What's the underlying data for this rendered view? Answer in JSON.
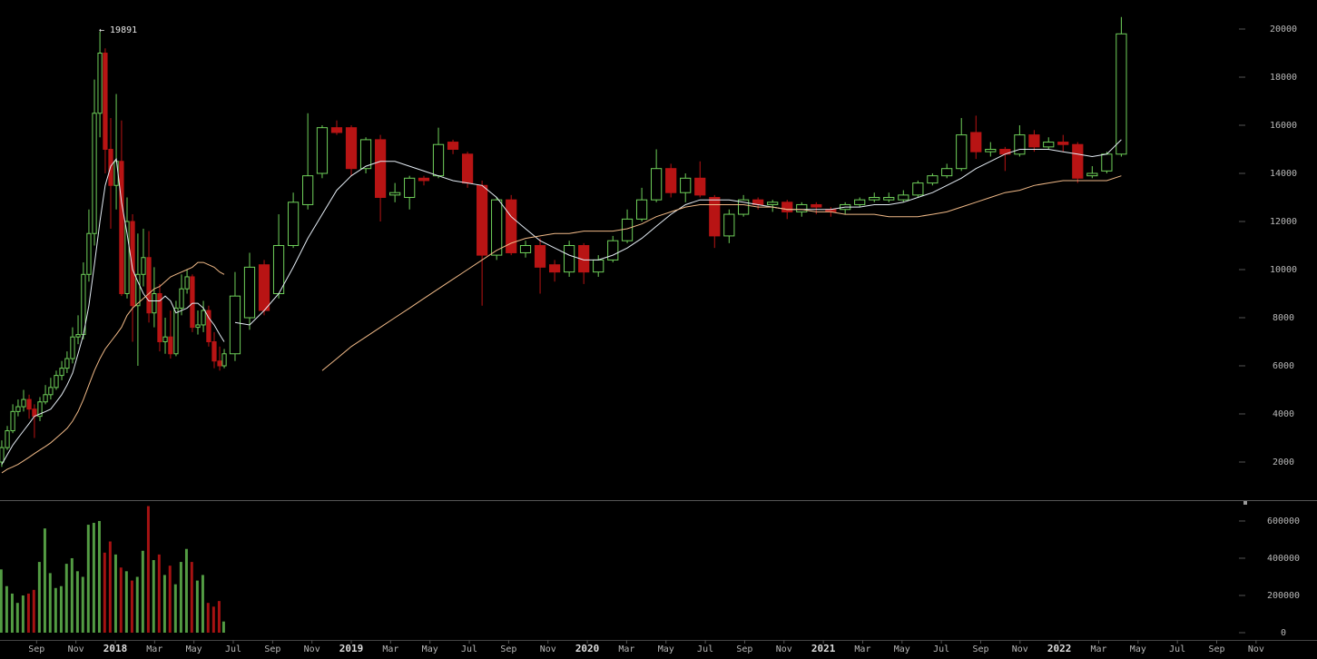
{
  "chart_data": {
    "type": "candlestick",
    "annotation": "← 19891",
    "xlim": [
      -5.86,
      57.13
    ],
    "xticks": [
      {
        "value": -4,
        "label": "Sep"
      },
      {
        "value": -2,
        "label": "Nov"
      },
      {
        "value": 0,
        "label": "2018"
      },
      {
        "value": 2,
        "label": "Mar"
      },
      {
        "value": 4,
        "label": "May"
      },
      {
        "value": 6,
        "label": "Jul"
      },
      {
        "value": 8,
        "label": "Sep"
      },
      {
        "value": 10,
        "label": "Nov"
      },
      {
        "value": 12,
        "label": "2019"
      },
      {
        "value": 14,
        "label": "Mar"
      },
      {
        "value": 16,
        "label": "May"
      },
      {
        "value": 18,
        "label": "Jul"
      },
      {
        "value": 20,
        "label": "Sep"
      },
      {
        "value": 22,
        "label": "Nov"
      },
      {
        "value": 24,
        "label": "2020"
      },
      {
        "value": 26,
        "label": "Mar"
      },
      {
        "value": 28,
        "label": "May"
      },
      {
        "value": 30,
        "label": "Jul"
      },
      {
        "value": 32,
        "label": "Sep"
      },
      {
        "value": 34,
        "label": "Nov"
      },
      {
        "value": 36,
        "label": "2021"
      },
      {
        "value": 38,
        "label": "Mar"
      },
      {
        "value": 40,
        "label": "May"
      },
      {
        "value": 42,
        "label": "Jul"
      },
      {
        "value": 44,
        "label": "Sep"
      },
      {
        "value": 46,
        "label": "Nov"
      },
      {
        "value": 48,
        "label": "2022"
      },
      {
        "value": 50,
        "label": "Mar"
      },
      {
        "value": 52,
        "label": "May"
      },
      {
        "value": 54,
        "label": "Jul"
      },
      {
        "value": 56,
        "label": "Sep"
      },
      {
        "value": 58,
        "label": "Nov"
      }
    ],
    "ylim": [
      415,
      21208
    ],
    "yticks": [
      2000,
      4000,
      6000,
      8000,
      10000,
      12000,
      14000,
      16000,
      18000,
      20000
    ],
    "volume_ylim": [
      -39000,
      712000
    ],
    "volume_yticks": [
      0,
      200000,
      400000,
      600000
    ],
    "up_color": "#6fd05a",
    "down_color": "#b81414",
    "groups": [
      {
        "x": [
          -5.77,
          -5.49,
          -5.21,
          -4.94,
          -4.66,
          -4.38,
          -4.11,
          -3.83,
          -3.55,
          -3.28,
          -3.0,
          -2.72,
          -2.45,
          -2.17,
          -1.89,
          -1.62,
          -1.34,
          -1.06,
          -0.78,
          -0.51,
          -0.23,
          0.05,
          0.32,
          0.6,
          0.88,
          1.15,
          1.43,
          1.71,
          1.98,
          2.26,
          2.54,
          2.81,
          3.09,
          3.37,
          3.65,
          3.92,
          4.2,
          4.48,
          4.75,
          5.03,
          5.31,
          5.54
        ],
        "open": [
          2000,
          2600,
          3300,
          4100,
          4300,
          4600,
          4200,
          3900,
          4500,
          4800,
          5100,
          5600,
          5900,
          6300,
          7200,
          7300,
          9800,
          11500,
          16500,
          19000,
          15000,
          13500,
          14500,
          9000,
          12000,
          8500,
          9800,
          10500,
          8200,
          9000,
          7000,
          7200,
          6500,
          8400,
          9200,
          9700,
          7600,
          7700,
          8300,
          7000,
          6200,
          6000
        ],
        "high": [
          2900,
          3500,
          4400,
          4600,
          5000,
          4800,
          4400,
          4700,
          5200,
          5500,
          5800,
          6200,
          6600,
          7600,
          8100,
          10300,
          12500,
          17900,
          19891,
          19200,
          16300,
          17300,
          16200,
          13000,
          12300,
          11500,
          11700,
          11600,
          10100,
          9400,
          8000,
          8300,
          8700,
          9800,
          10000,
          9800,
          8300,
          8700,
          8500,
          7400,
          6800,
          6700
        ],
        "low": [
          1800,
          2500,
          3200,
          3900,
          4100,
          3800,
          3000,
          3700,
          4400,
          4600,
          5000,
          5400,
          5700,
          6100,
          6900,
          7100,
          9500,
          11000,
          15500,
          14000,
          11700,
          12500,
          8900,
          8800,
          7000,
          6000,
          9300,
          7800,
          7600,
          6600,
          6500,
          6300,
          6400,
          8100,
          9000,
          7400,
          7300,
          7400,
          6800,
          5900,
          5800,
          5900
        ],
        "close": [
          2600,
          3300,
          4100,
          4300,
          4600,
          4200,
          3900,
          4500,
          4800,
          5100,
          5600,
          5900,
          6300,
          7200,
          7300,
          9800,
          11500,
          16500,
          19000,
          15000,
          13500,
          14500,
          9000,
          12000,
          8500,
          9800,
          10500,
          8200,
          9000,
          7000,
          7200,
          6500,
          8400,
          9200,
          9700,
          7600,
          7700,
          8300,
          7000,
          6200,
          6000,
          6500
        ],
        "volume": [
          340000,
          250000,
          210000,
          160000,
          200000,
          210000,
          230000,
          380000,
          560000,
          320000,
          240000,
          250000,
          370000,
          400000,
          330000,
          300000,
          580000,
          590000,
          600000,
          430000,
          490000,
          420000,
          350000,
          330000,
          280000,
          300000,
          440000,
          680000,
          390000,
          420000,
          310000,
          360000,
          260000,
          380000,
          450000,
          380000,
          280000,
          310000,
          160000,
          140000,
          170000,
          60000
        ],
        "lines": [
          {
            "color": "#e4ecf4",
            "values": [
              1900,
              2300,
              2700,
              3000,
              3300,
              3600,
              3900,
              4000,
              4100,
              4200,
              4500,
              4800,
              5200,
              5700,
              6500,
              7300,
              8500,
              10200,
              12000,
              13500,
              14300,
              14600,
              12800,
              11500,
              10000,
              9500,
              9000,
              8700,
              8700,
              8700,
              8900,
              8700,
              8200,
              8300,
              8400,
              8600,
              8600,
              8400,
              8000,
              7700,
              7300,
              7000
            ]
          },
          {
            "color": "#f0b987",
            "values": [
              1550,
              1700,
              1800,
              1900,
              2050,
              2200,
              2350,
              2500,
              2650,
              2800,
              3000,
              3200,
              3400,
              3700,
              4100,
              4600,
              5200,
              5800,
              6300,
              6700,
              7000,
              7300,
              7600,
              8100,
              8400,
              8600,
              8800,
              9000,
              9200,
              9300,
              9500,
              9700,
              9800,
              9900,
              10000,
              10100,
              10300,
              10300,
              10200,
              10100,
              9900,
              9800
            ]
          }
        ]
      },
      {
        "x": [
          6.09,
          6.83,
          7.57,
          8.31,
          9.05,
          9.79,
          10.52,
          11.26,
          12.0,
          12.74,
          13.48,
          14.22,
          14.96,
          15.69,
          16.43,
          17.17,
          17.91,
          18.65,
          19.39,
          20.13,
          20.86,
          21.6,
          22.34,
          23.08,
          23.82,
          24.56,
          25.3,
          26.03,
          26.77,
          27.51,
          28.25,
          28.99,
          29.73,
          30.47,
          31.21,
          31.94,
          32.68,
          33.42,
          34.16,
          34.9,
          35.64,
          36.38,
          37.11,
          37.85,
          38.59,
          39.33,
          40.07,
          40.81,
          41.55,
          42.28,
          43.02,
          43.76,
          44.5,
          45.24,
          45.98,
          46.72,
          47.45,
          48.19,
          48.93,
          49.67,
          50.41,
          51.15
        ],
        "open": [
          6500,
          8000,
          10200,
          9000,
          11000,
          12700,
          14000,
          15900,
          15900,
          14200,
          15400,
          13100,
          13000,
          13800,
          13900,
          15300,
          14800,
          13500,
          10600,
          12900,
          10700,
          11000,
          10200,
          9900,
          11000,
          9900,
          10400,
          11200,
          12100,
          12900,
          14200,
          13200,
          13800,
          13000,
          11400,
          12300,
          12900,
          12700,
          12800,
          12400,
          12700,
          12500,
          12500,
          12700,
          12900,
          12900,
          12900,
          13100,
          13600,
          13900,
          14200,
          15700,
          14900,
          15000,
          14800,
          15600,
          15100,
          15300,
          15200,
          13900,
          14100,
          14800
        ],
        "high": [
          9900,
          10700,
          10400,
          12300,
          13200,
          16500,
          16000,
          16200,
          16000,
          15500,
          15600,
          13600,
          13900,
          13900,
          15900,
          15400,
          14900,
          13700,
          13000,
          13100,
          11200,
          11300,
          10400,
          11200,
          11100,
          10600,
          11400,
          12500,
          13400,
          15000,
          14400,
          14000,
          14500,
          13100,
          12500,
          13100,
          13000,
          12900,
          12900,
          12800,
          12800,
          12600,
          12800,
          13000,
          13200,
          13200,
          13300,
          13700,
          14000,
          14400,
          16300,
          16400,
          15300,
          15100,
          16000,
          15800,
          15500,
          15600,
          15300,
          14300,
          14900,
          20500
        ],
        "low": [
          6200,
          7500,
          8100,
          8800,
          10900,
          12500,
          13800,
          15600,
          13900,
          14000,
          12000,
          12800,
          12500,
          13500,
          13800,
          14800,
          13400,
          8500,
          10400,
          10600,
          10500,
          9000,
          9500,
          9700,
          9400,
          9700,
          10300,
          11100,
          12000,
          12800,
          13000,
          12800,
          13000,
          10900,
          11100,
          12200,
          12500,
          12400,
          12100,
          12200,
          12300,
          12200,
          12300,
          12600,
          12800,
          12800,
          12800,
          13000,
          13500,
          13800,
          14100,
          14600,
          14700,
          14100,
          14700,
          14900,
          15000,
          14900,
          13600,
          13800,
          14000,
          14700
        ],
        "close": [
          8900,
          10100,
          8300,
          11000,
          12800,
          13900,
          15900,
          15700,
          14200,
          15400,
          13000,
          13200,
          13800,
          13700,
          15200,
          15000,
          13600,
          10600,
          12900,
          10700,
          11000,
          10100,
          9900,
          11000,
          9900,
          10400,
          11200,
          12100,
          12900,
          14200,
          13200,
          13800,
          13100,
          11400,
          12300,
          12900,
          12700,
          12800,
          12400,
          12700,
          12600,
          12400,
          12700,
          12900,
          13000,
          13000,
          13100,
          13600,
          13900,
          14200,
          15600,
          14900,
          15000,
          14800,
          15600,
          15100,
          15300,
          15200,
          13800,
          14000,
          14800,
          19800
        ],
        "lines": [
          {
            "color": "#e4ecf4",
            "values": [
              7800,
              7700,
              8300,
              9000,
              10100,
              11300,
              12300,
              13300,
              13900,
              14300,
              14500,
              14500,
              14300,
              14100,
              13900,
              13700,
              13600,
              13500,
              13000,
              12200,
              11700,
              11200,
              10900,
              10600,
              10400,
              10400,
              10600,
              10900,
              11300,
              11800,
              12300,
              12700,
              12900,
              12900,
              12900,
              12800,
              12700,
              12600,
              12500,
              12500,
              12500,
              12500,
              12600,
              12600,
              12700,
              12700,
              12800,
              13000,
              13200,
              13500,
              13800,
              14200,
              14500,
              14800,
              15000,
              15000,
              15000,
              14900,
              14800,
              14700,
              14800,
              15400
            ]
          },
          {
            "color": "#f0b987",
            "values": [
              null,
              null,
              null,
              null,
              null,
              null,
              5800,
              6300,
              6800,
              7200,
              7600,
              8000,
              8400,
              8800,
              9200,
              9600,
              10000,
              10400,
              10800,
              11100,
              11300,
              11400,
              11500,
              11500,
              11600,
              11600,
              11600,
              11700,
              11900,
              12200,
              12400,
              12600,
              12700,
              12700,
              12700,
              12700,
              12600,
              12600,
              12500,
              12500,
              12400,
              12400,
              12300,
              12300,
              12300,
              12200,
              12200,
              12200,
              12300,
              12400,
              12600,
              12800,
              13000,
              13200,
              13300,
              13500,
              13600,
              13700,
              13700,
              13700,
              13700,
              13900
            ]
          }
        ]
      }
    ]
  }
}
